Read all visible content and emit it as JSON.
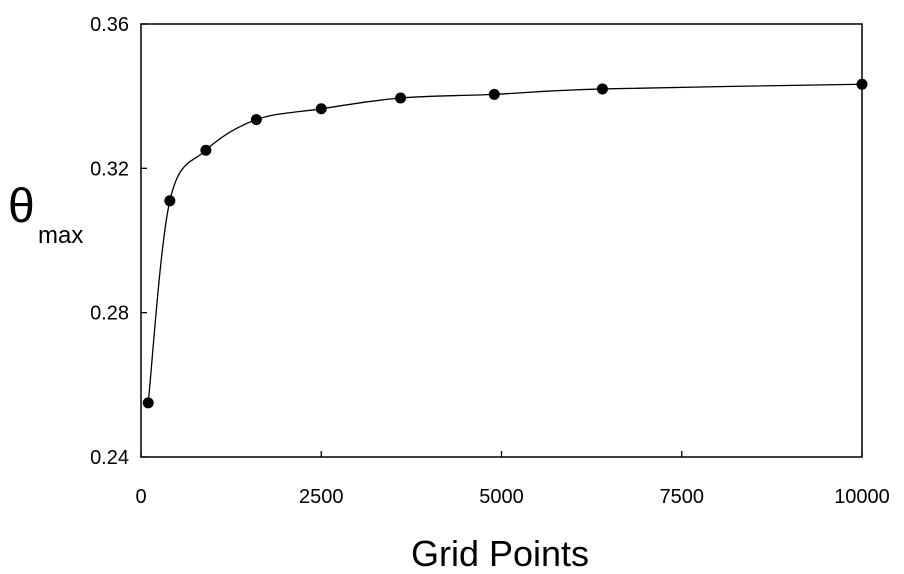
{
  "chart_data": {
    "type": "line",
    "title": "",
    "xlabel": "Grid Points",
    "ylabel": {
      "symbol": "θ",
      "subscript": "max"
    },
    "xlim": [
      0,
      10000
    ],
    "ylim": [
      0.24,
      0.36
    ],
    "xticks": [
      0,
      2500,
      5000,
      7500,
      10000
    ],
    "xtick_labels": [
      "0",
      "2500",
      "5000",
      "7500",
      "10000"
    ],
    "yticks": [
      0.24,
      0.28,
      0.32,
      0.36
    ],
    "ytick_labels": [
      "0.24",
      "0.28",
      "0.32",
      "0.36"
    ],
    "grid": false,
    "legend": "none",
    "colors": {
      "line": "#000000",
      "marker": "#000000"
    },
    "series": [
      {
        "x": [
          100,
          400,
          900,
          1600,
          2500,
          3600,
          4900,
          6400,
          10000
        ],
        "y": [
          0.255,
          0.311,
          0.325,
          0.3335,
          0.3365,
          0.3395,
          0.3405,
          0.342,
          0.3433
        ]
      }
    ]
  }
}
